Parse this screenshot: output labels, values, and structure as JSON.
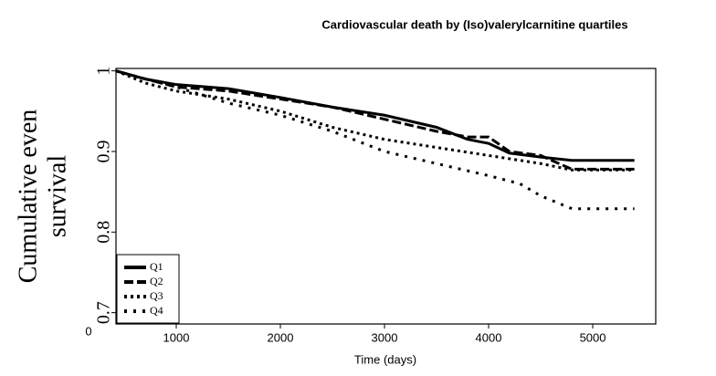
{
  "chart_data": {
    "type": "line",
    "title": "Cardiovascular death by (Iso)valerylcarnitine quartiles",
    "x_label": "Time (days)",
    "y_label": [
      "Cumulative even",
      "survival"
    ],
    "corner_label": "0",
    "xlim": [
      421,
      5605
    ],
    "xticks": [
      1000,
      2000,
      3000,
      4000,
      5000
    ],
    "ylim": [
      0.686,
      1.003
    ],
    "yticks": [
      1,
      0.9,
      0.8,
      0.7
    ],
    "legend": "lower left",
    "series": [
      {
        "name": "Q1",
        "color": "#000000",
        "dash": "solid",
        "x": [
          421,
          700,
          1000,
          1500,
          2000,
          2500,
          3000,
          3500,
          3800,
          4000,
          4200,
          4500,
          4800,
          5400
        ],
        "values": [
          1.0,
          0.99,
          0.983,
          0.978,
          0.967,
          0.955,
          0.945,
          0.93,
          0.915,
          0.91,
          0.898,
          0.893,
          0.889,
          0.889
        ]
      },
      {
        "name": "Q2",
        "color": "#000000",
        "dash": "dashed",
        "x": [
          421,
          700,
          1000,
          1500,
          2000,
          2500,
          3000,
          3500,
          3800,
          4000,
          4200,
          4500,
          4800,
          5400
        ],
        "values": [
          1.0,
          0.99,
          0.98,
          0.975,
          0.965,
          0.955,
          0.94,
          0.925,
          0.918,
          0.918,
          0.9,
          0.895,
          0.878,
          0.878
        ]
      },
      {
        "name": "Q3",
        "color": "#000000",
        "dash": "dotted",
        "x": [
          421,
          700,
          1000,
          1500,
          2000,
          2500,
          3000,
          3500,
          4000,
          4500,
          4800,
          5400
        ],
        "values": [
          1.0,
          0.985,
          0.975,
          0.965,
          0.95,
          0.93,
          0.915,
          0.905,
          0.895,
          0.885,
          0.877,
          0.877
        ]
      },
      {
        "name": "Q4",
        "color": "#000000",
        "dash": "sparse-dotted",
        "x": [
          421,
          700,
          1000,
          1500,
          2000,
          2500,
          3000,
          3500,
          4000,
          4300,
          4500,
          4800,
          5400
        ],
        "values": [
          1.0,
          0.99,
          0.98,
          0.96,
          0.945,
          0.925,
          0.9,
          0.885,
          0.87,
          0.86,
          0.845,
          0.829,
          0.829
        ]
      }
    ]
  }
}
